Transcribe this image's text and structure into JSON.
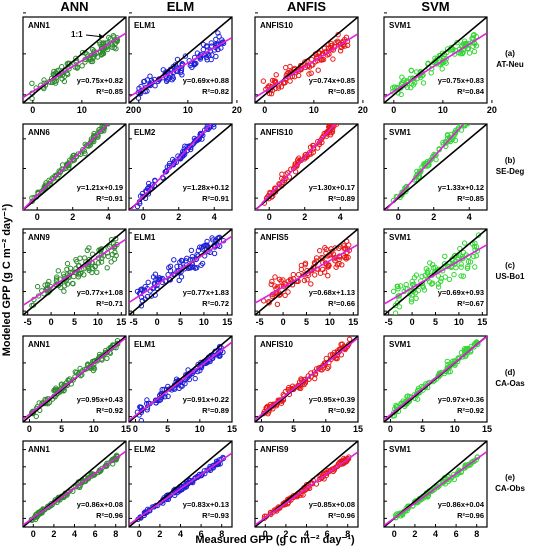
{
  "chart_data": {
    "type": "scatter",
    "xlabel": "Measured GPP (g C m⁻² day⁻¹)",
    "ylabel": "Modeled GPP (g C m⁻² day⁻¹)",
    "models": [
      "ANN",
      "ELM",
      "ANFIS",
      "SVM"
    ],
    "colors": {
      "ANN": "#2e8b2e",
      "ELM": "#1f1fd6",
      "ANFIS": "#e81818",
      "SVM": "#33d633",
      "fit": "#e020e0",
      "identity": "#000000"
    },
    "one_to_one_label": "1:1",
    "sites": [
      {
        "id": "(a)",
        "name": "AT-Neu",
        "range": [
          -2,
          19
        ],
        "ticks": [
          0,
          10,
          20
        ],
        "scatter": 2.5,
        "panels": [
          {
            "model": "ANN",
            "label": "ANN1",
            "slope": 0.75,
            "intercept": 0.82,
            "r2": "0.85",
            "eq": "y=0.75x+0.82",
            "r2text": "R²=0.85"
          },
          {
            "model": "ELM",
            "label": "ELM1",
            "slope": 0.69,
            "intercept": 0.88,
            "r2": "0.82",
            "eq": "y=0.69x+0.88",
            "r2text": "R²=0.82"
          },
          {
            "model": "ANFIS",
            "label": "ANFIS10",
            "slope": 0.74,
            "intercept": 0.85,
            "r2": "0.85",
            "eq": "y=0.74x+0.85",
            "r2text": "R²=0.85"
          },
          {
            "model": "SVM",
            "label": "SVM1",
            "slope": 0.75,
            "intercept": 0.83,
            "r2": "0.84",
            "eq": "y=0.75x+0.83",
            "r2text": "R²=0.84"
          }
        ]
      },
      {
        "id": "(b)",
        "name": "SE-Deg",
        "range": [
          -0.8,
          5
        ],
        "ticks": [
          0,
          2,
          4
        ],
        "scatter": 0.45,
        "panels": [
          {
            "model": "ANN",
            "label": "ANN6",
            "slope": 1.21,
            "intercept": 0.19,
            "r2": "0.91",
            "eq": "y=1.21x+0.19",
            "r2text": "R²=0.91"
          },
          {
            "model": "ELM",
            "label": "ELM2",
            "slope": 1.28,
            "intercept": 0.12,
            "r2": "0.91",
            "eq": "y=1.28x+0.12",
            "r2text": "R²=0.91"
          },
          {
            "model": "ANFIS",
            "label": "ANFIS10",
            "slope": 1.3,
            "intercept": 0.17,
            "r2": "0.89",
            "eq": "y=1.30x+0.17",
            "r2text": "R²=0.89"
          },
          {
            "model": "SVM",
            "label": "SVM1",
            "slope": 1.33,
            "intercept": 0.12,
            "r2": "0.85",
            "eq": "y=1.33x+0.12",
            "r2text": "R²=0.85"
          }
        ]
      },
      {
        "id": "(c)",
        "name": "US-Bo1",
        "range": [
          -6,
          16
        ],
        "ticks": [
          -5,
          0,
          5,
          10,
          15
        ],
        "scatter": 3.0,
        "panels": [
          {
            "model": "ANN",
            "label": "ANN9",
            "slope": 0.77,
            "intercept": 1.08,
            "r2": "0.71",
            "eq": "y=0.77x+1.08",
            "r2text": "R²=0.71"
          },
          {
            "model": "ELM",
            "label": "ELM1",
            "slope": 0.77,
            "intercept": 1.83,
            "r2": "0.72",
            "eq": "y=0.77x+1.83",
            "r2text": "R²=0.72"
          },
          {
            "model": "ANFIS",
            "label": "ANFIS5",
            "slope": 0.68,
            "intercept": 1.13,
            "r2": "0.66",
            "eq": "y=0.68x+1.13",
            "r2text": "R²=0.66"
          },
          {
            "model": "SVM",
            "label": "SVM1",
            "slope": 0.69,
            "intercept": 0.93,
            "r2": "0.67",
            "eq": "y=0.69x+0.93",
            "r2text": "R²=0.67"
          }
        ]
      },
      {
        "id": "(d)",
        "name": "CA-Oas",
        "range": [
          -1,
          15
        ],
        "ticks": [
          0,
          5,
          10,
          15
        ],
        "scatter": 1.5,
        "panels": [
          {
            "model": "ANN",
            "label": "ANN1",
            "slope": 0.95,
            "intercept": 0.43,
            "r2": "0.92",
            "eq": "y=0.95x+0.43",
            "r2text": "R²=0.92"
          },
          {
            "model": "ELM",
            "label": "ELM1",
            "slope": 0.91,
            "intercept": 0.22,
            "r2": "0.89",
            "eq": "y=0.91x+0.22",
            "r2text": "R²=0.89"
          },
          {
            "model": "ANFIS",
            "label": "ANFIS10",
            "slope": 0.95,
            "intercept": 0.39,
            "r2": "0.92",
            "eq": "y=0.95x+0.39",
            "r2text": "R²=0.92"
          },
          {
            "model": "SVM",
            "label": "SVM1",
            "slope": 0.97,
            "intercept": 0.36,
            "r2": "0.92",
            "eq": "y=0.97x+0.36",
            "r2text": "R²=0.92"
          }
        ]
      },
      {
        "id": "(e)",
        "name": "CA-Obs",
        "range": [
          -1,
          9
        ],
        "ticks": [
          0,
          2,
          4,
          6,
          8
        ],
        "scatter": 0.55,
        "panels": [
          {
            "model": "ANN",
            "label": "ANN1",
            "slope": 0.86,
            "intercept": 0.08,
            "r2": "0.96",
            "eq": "y=0.86x+0.08",
            "r2text": "R²=0.96"
          },
          {
            "model": "ELM",
            "label": "ELM2",
            "slope": 0.83,
            "intercept": 0.13,
            "r2": "0.93",
            "eq": "y=0.83x+0.13",
            "r2text": "R²=0.93"
          },
          {
            "model": "ANFIS",
            "label": "ANFIS9",
            "slope": 0.85,
            "intercept": 0.08,
            "r2": "0.96",
            "eq": "y=0.85x+0.08",
            "r2text": "R²=0.96"
          },
          {
            "model": "SVM",
            "label": "SVM1",
            "slope": 0.86,
            "intercept": 0.04,
            "r2": "0.96",
            "eq": "y=0.86x+0.04",
            "r2text": "R²=0.96"
          }
        ]
      }
    ]
  }
}
